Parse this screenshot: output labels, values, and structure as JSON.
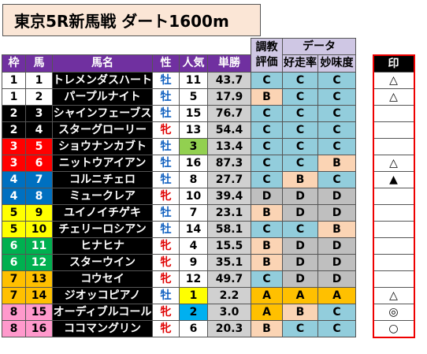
{
  "title": "東京5R新馬戦 ダート1600m",
  "headers": {
    "waku": "枠",
    "uma": "馬",
    "name": "馬名",
    "sex": "性",
    "ninki": "人気",
    "tansho": "単勝",
    "chokyo_top": "調教",
    "chokyo_bottom": "評価",
    "data_group": "データ",
    "kosoritsu": "好走率",
    "mimido": "妙味度",
    "mark": "印"
  },
  "colors": {
    "waku_1": "#ffffff",
    "waku_2": "#000000",
    "waku_3": "#ff0000",
    "waku_4": "#0070c0",
    "waku_5": "#ffff00",
    "waku_6": "#00b050",
    "waku_7": "#ffc000",
    "waku_8": "#ff99cc",
    "grade_A": "#ffc000",
    "grade_B": "#fbd4b4",
    "grade_C": "#92cddc",
    "grade_D": "#bfbfbf",
    "ninki_1": "#ffff00",
    "ninki_2": "#00b0f0",
    "ninki_3": "#92d050"
  },
  "rows": [
    {
      "waku": "1",
      "uma": "1",
      "name": "トレメンダスハート",
      "sex": "牡",
      "ninki": "11",
      "tansho": "43.7",
      "chokyo": "C",
      "kosoritsu": "C",
      "mimido": "C",
      "mark": "△"
    },
    {
      "waku": "1",
      "uma": "2",
      "name": "パープルナイト",
      "sex": "牡",
      "ninki": "5",
      "tansho": "17.9",
      "chokyo": "B",
      "kosoritsu": "C",
      "mimido": "C",
      "mark": "△"
    },
    {
      "waku": "2",
      "uma": "3",
      "name": "シャインフェーブス",
      "sex": "牡",
      "ninki": "15",
      "tansho": "76.7",
      "chokyo": "C",
      "kosoritsu": "C",
      "mimido": "C",
      "mark": ""
    },
    {
      "waku": "2",
      "uma": "4",
      "name": "スターグローリー",
      "sex": "牝",
      "ninki": "13",
      "tansho": "54.4",
      "chokyo": "C",
      "kosoritsu": "C",
      "mimido": "C",
      "mark": ""
    },
    {
      "waku": "3",
      "uma": "5",
      "name": "ショウナンカブト",
      "sex": "牡",
      "ninki": "3",
      "tansho": "13.4",
      "chokyo": "C",
      "kosoritsu": "C",
      "mimido": "C",
      "mark": ""
    },
    {
      "waku": "3",
      "uma": "6",
      "name": "ニットウアイアン",
      "sex": "牡",
      "ninki": "16",
      "tansho": "87.3",
      "chokyo": "C",
      "kosoritsu": "C",
      "mimido": "B",
      "mark": "△"
    },
    {
      "waku": "4",
      "uma": "7",
      "name": "コルニチェロ",
      "sex": "牡",
      "ninki": "8",
      "tansho": "27.7",
      "chokyo": "C",
      "kosoritsu": "B",
      "mimido": "C",
      "mark": "▲"
    },
    {
      "waku": "4",
      "uma": "8",
      "name": "ミュークレア",
      "sex": "牝",
      "ninki": "10",
      "tansho": "39.4",
      "chokyo": "D",
      "kosoritsu": "D",
      "mimido": "D",
      "mark": ""
    },
    {
      "waku": "5",
      "uma": "9",
      "name": "ユイノイチゲキ",
      "sex": "牡",
      "ninki": "7",
      "tansho": "23.1",
      "chokyo": "B",
      "kosoritsu": "D",
      "mimido": "D",
      "mark": ""
    },
    {
      "waku": "5",
      "uma": "10",
      "name": "チェリーロシアン",
      "sex": "牡",
      "ninki": "14",
      "tansho": "58.1",
      "chokyo": "C",
      "kosoritsu": "C",
      "mimido": "B",
      "mark": ""
    },
    {
      "waku": "6",
      "uma": "11",
      "name": "ヒナヒナ",
      "sex": "牝",
      "ninki": "4",
      "tansho": "15.5",
      "chokyo": "B",
      "kosoritsu": "D",
      "mimido": "D",
      "mark": ""
    },
    {
      "waku": "6",
      "uma": "12",
      "name": "スターウイン",
      "sex": "牝",
      "ninki": "9",
      "tansho": "35.1",
      "chokyo": "B",
      "kosoritsu": "D",
      "mimido": "D",
      "mark": ""
    },
    {
      "waku": "7",
      "uma": "13",
      "name": "コウセイ",
      "sex": "牝",
      "ninki": "12",
      "tansho": "49.7",
      "chokyo": "C",
      "kosoritsu": "D",
      "mimido": "D",
      "mark": ""
    },
    {
      "waku": "7",
      "uma": "14",
      "name": "ジオッコピアノ",
      "sex": "牡",
      "ninki": "1",
      "tansho": "2.2",
      "chokyo": "A",
      "kosoritsu": "A",
      "mimido": "A",
      "mark": "△"
    },
    {
      "waku": "8",
      "uma": "15",
      "name": "オーディブルコール",
      "sex": "牝",
      "ninki": "2",
      "tansho": "3.0",
      "chokyo": "A",
      "kosoritsu": "B",
      "mimido": "C",
      "mark": "◎"
    },
    {
      "waku": "8",
      "uma": "16",
      "name": "ココマングリン",
      "sex": "牝",
      "ninki": "6",
      "tansho": "20.3",
      "chokyo": "B",
      "kosoritsu": "C",
      "mimido": "C",
      "mark": "○"
    }
  ]
}
